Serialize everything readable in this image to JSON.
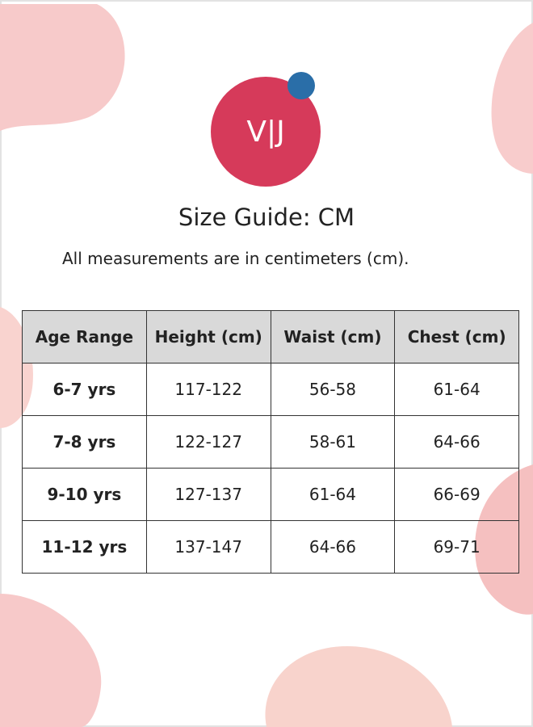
{
  "logo": {
    "text": "V|J"
  },
  "header": {
    "title": "Size Guide: CM",
    "subtitle": "All measurements are in centimeters (cm)."
  },
  "table": {
    "columns": [
      "Age Range",
      "Height (cm)",
      "Waist (cm)",
      "Chest (cm)"
    ],
    "rows": [
      [
        "6-7 yrs",
        "117-122",
        "56-58",
        "61-64"
      ],
      [
        "7-8 yrs",
        "122-127",
        "58-61",
        "64-66"
      ],
      [
        "9-10 yrs",
        "127-137",
        "61-64",
        "66-69"
      ],
      [
        "11-12 yrs",
        "137-147",
        "64-66",
        "69-71"
      ]
    ]
  }
}
